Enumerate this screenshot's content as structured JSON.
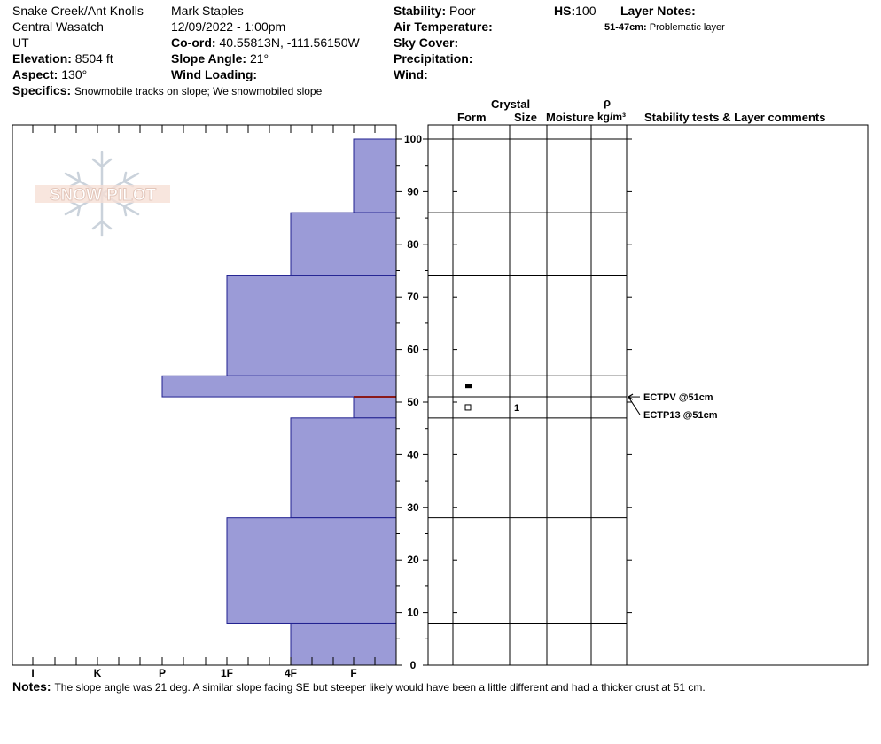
{
  "location": {
    "name": "Snake Creek/Ant Knolls",
    "range": "Central Wasatch",
    "state": "UT",
    "elevation_label": "Elevation:",
    "elevation": "8504 ft",
    "aspect_label": "Aspect:",
    "aspect": "130°"
  },
  "observation": {
    "observer": "Mark Staples",
    "datetime": "12/09/2022 - 1:00pm",
    "coord_label": "Co-ord:",
    "coord": "40.55813N, -111.56150W",
    "slope_label": "Slope Angle:",
    "slope": "21°",
    "wind_loading_label": "Wind Loading:",
    "wind_loading": ""
  },
  "conditions": {
    "stability_label": "Stability:",
    "stability": "Poor",
    "air_temp_label": "Air Temperature:",
    "sky_label": "Sky Cover:",
    "precip_label": "Precipitation:",
    "wind_label": "Wind:",
    "hs_label": "HS:",
    "hs": "100"
  },
  "layer_notes": {
    "label": "Layer Notes:",
    "range": "51-47cm:",
    "text": "Problematic layer"
  },
  "specifics": {
    "label": "Specifics:",
    "text": "Snowmobile tracks on slope; We snowmobiled slope"
  },
  "notes": {
    "label": "Notes:",
    "text": "The slope angle was 21 deg. A similar slope facing SE but steeper likely would have been a little different and had a thicker crust at 51 cm."
  },
  "logo_text": "SNOW PILOT",
  "columns": {
    "crystal": "Crystal",
    "form": "Form",
    "size": "Size",
    "moisture": "Moisture",
    "rho": "ρ",
    "density_unit": "kg/m³",
    "stability": "Stability tests & Layer comments"
  },
  "colors": {
    "hardness_fill": "#9b9bd7",
    "hardness_stroke": "#1f1f8f",
    "crust_line": "#8b1a1a"
  },
  "chart_data": {
    "type": "bar",
    "title": "",
    "hardness_ticks": [
      "I",
      "K",
      "P",
      "1F",
      "4F",
      "F"
    ],
    "hardness_scale_order": [
      "F",
      "4F",
      "1F",
      "P",
      "K",
      "I"
    ],
    "y_ticks": [
      "0",
      "10",
      "20",
      "30",
      "40",
      "50",
      "60",
      "70",
      "80",
      "90",
      "100"
    ],
    "ylim": [
      0,
      100
    ],
    "layers": [
      {
        "top": 100,
        "bottom": 86,
        "hardness": "F+"
      },
      {
        "top": 86,
        "bottom": 74,
        "hardness": "4F"
      },
      {
        "top": 74,
        "bottom": 55,
        "hardness": "1F"
      },
      {
        "top": 55,
        "bottom": 51,
        "hardness": "P"
      },
      {
        "top": 51,
        "bottom": 47,
        "hardness": "F+"
      },
      {
        "top": 47,
        "bottom": 28,
        "hardness": "4F"
      },
      {
        "top": 28,
        "bottom": 8,
        "hardness": "1F"
      },
      {
        "top": 8,
        "bottom": 0,
        "hardness": "4F"
      }
    ],
    "layer_boundaries": [
      100,
      86,
      74,
      55,
      51,
      47,
      28,
      8
    ],
    "crust_line_at": 51,
    "grain_symbols": [
      {
        "height": 53,
        "symbol": "filled-square",
        "size": ""
      },
      {
        "height": 49,
        "symbol": "open-square",
        "size": "1"
      }
    ],
    "stability_tests": [
      {
        "height": 51,
        "label": "ECTPV @51cm"
      },
      {
        "height": 51,
        "label": "ECTP13 @51cm"
      }
    ]
  }
}
